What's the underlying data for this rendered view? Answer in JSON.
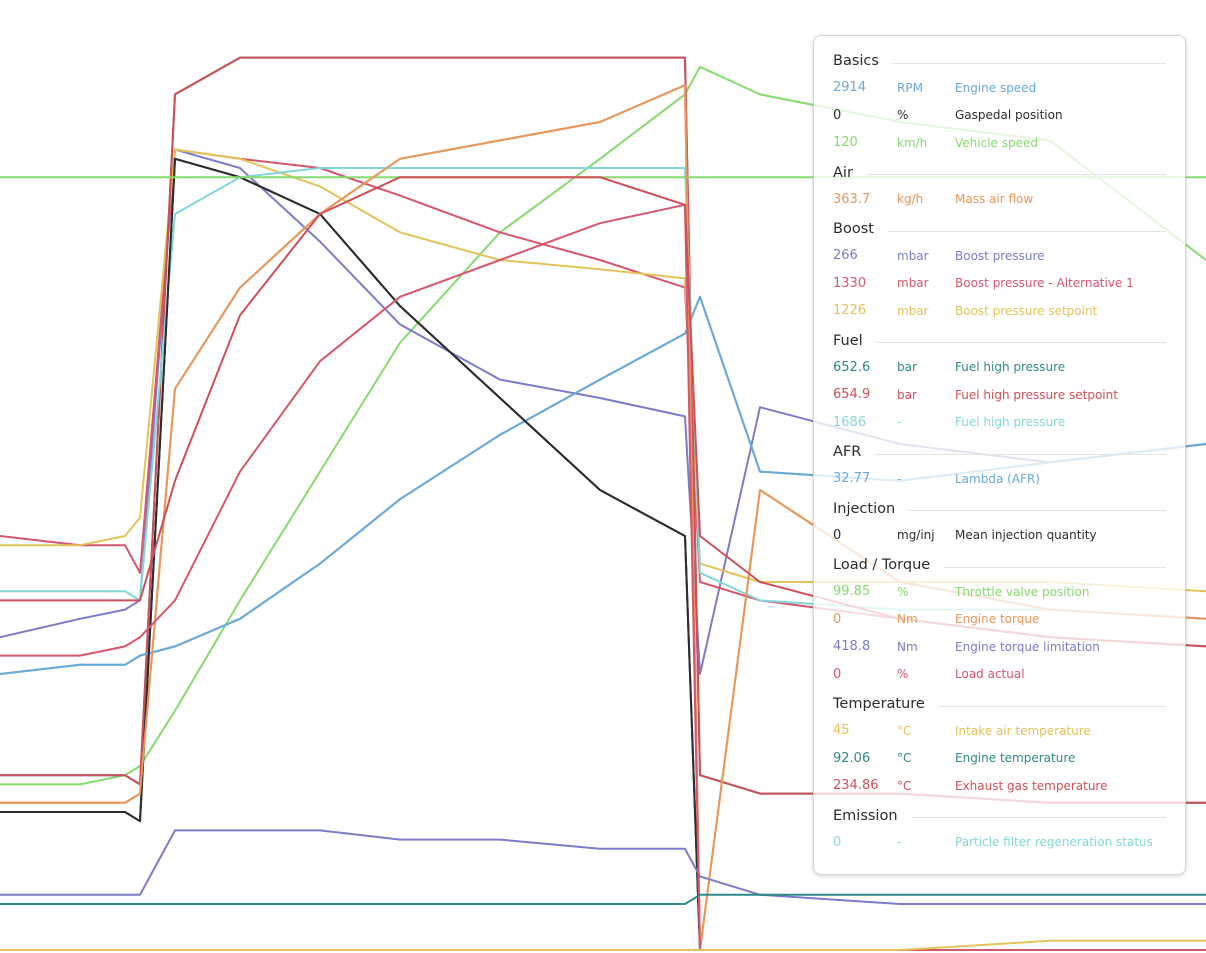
{
  "chart_data": {
    "type": "line",
    "title": "",
    "xlabel": "",
    "ylabel": "",
    "grid": false,
    "legend_placement": "top-right",
    "series": [
      {
        "name": "Engine speed",
        "color": "#6aa9d8",
        "values": [
          0.3,
          0.31,
          0.31,
          0.32,
          0.33,
          0.36,
          0.42,
          0.49,
          0.56,
          0.62,
          0.67,
          0.71,
          0.52,
          0.51,
          0.53,
          0.55
        ]
      },
      {
        "name": "Gaspedal position",
        "color": "#2d2d2d",
        "values": [
          0.15,
          0.15,
          0.15,
          0.14,
          0.86,
          0.84,
          0.8,
          0.7,
          0.6,
          0.5,
          0.45,
          0.0,
          0.0,
          0.0,
          0.0,
          0.0
        ]
      },
      {
        "name": "Vehicle speed",
        "color": "#86db6e",
        "values": [
          0.18,
          0.18,
          0.19,
          0.2,
          0.26,
          0.38,
          0.52,
          0.66,
          0.78,
          0.86,
          0.93,
          0.96,
          0.93,
          0.9,
          0.88,
          0.75
        ]
      },
      {
        "name": "Mass air flow",
        "color": "#e8975a",
        "values": [
          0.16,
          0.16,
          0.16,
          0.17,
          0.61,
          0.72,
          0.8,
          0.86,
          0.88,
          0.9,
          0.94,
          0.0,
          0.5,
          0.4,
          0.37,
          0.36
        ]
      },
      {
        "name": "Boost pressure",
        "color": "#7c7cc8",
        "values": [
          0.34,
          0.36,
          0.37,
          0.38,
          0.87,
          0.85,
          0.77,
          0.68,
          0.62,
          0.6,
          0.58,
          0.3,
          0.59,
          0.55,
          0.53,
          0.55
        ]
      },
      {
        "name": "Boost pressure - Alternative 1",
        "color": "#d6566e",
        "values": [
          0.45,
          0.44,
          0.44,
          0.41,
          0.87,
          0.86,
          0.85,
          0.82,
          0.78,
          0.75,
          0.72,
          0.4,
          0.38,
          0.36,
          0.34,
          0.33
        ]
      },
      {
        "name": "Boost pressure setpoint",
        "color": "#e3c35a",
        "values": [
          0.44,
          0.44,
          0.45,
          0.47,
          0.87,
          0.86,
          0.83,
          0.78,
          0.75,
          0.74,
          0.73,
          0.42,
          0.4,
          0.4,
          0.4,
          0.39
        ]
      },
      {
        "name": "Fuel high pressure",
        "color": "#2e8a86",
        "values": [
          0.19,
          0.19,
          0.19,
          0.18,
          0.93,
          0.97,
          0.97,
          0.97,
          0.97,
          0.97,
          0.97,
          0.19,
          0.17,
          0.17,
          0.16,
          0.16
        ]
      },
      {
        "name": "Fuel high pressure setpoint",
        "color": "#cf4f58",
        "values": [
          0.19,
          0.19,
          0.19,
          0.18,
          0.93,
          0.97,
          0.97,
          0.97,
          0.97,
          0.97,
          0.97,
          0.19,
          0.17,
          0.17,
          0.16,
          0.16
        ]
      },
      {
        "name": "Fuel high pressure",
        "color": "#82d8d8",
        "values": [
          0.39,
          0.39,
          0.39,
          0.38,
          0.8,
          0.84,
          0.85,
          0.85,
          0.85,
          0.85,
          0.85,
          0.41,
          0.38,
          0.37,
          0.37,
          0.36
        ]
      },
      {
        "name": "Lambda (AFR)",
        "color": "#6aa9d8",
        "values": [
          0.3,
          0.31,
          0.31,
          0.32,
          0.33,
          0.36,
          0.42,
          0.49,
          0.56,
          0.62,
          0.67,
          0.71,
          0.52,
          0.51,
          0.53,
          0.55
        ]
      },
      {
        "name": "Mean injection quantity",
        "color": "#2d2d2d",
        "values": [
          0.15,
          0.15,
          0.15,
          0.14,
          0.86,
          0.84,
          0.8,
          0.7,
          0.6,
          0.5,
          0.45,
          0.0,
          0.0,
          0.0,
          0.0,
          0.0
        ]
      },
      {
        "name": "Throttle valve position",
        "color": "#86db6e",
        "values": [
          0.84,
          0.84,
          0.84,
          0.84,
          0.84,
          0.84,
          0.84,
          0.84,
          0.84,
          0.84,
          0.84,
          0.84,
          0.84,
          0.84,
          0.84,
          0.84
        ]
      },
      {
        "name": "Engine torque",
        "color": "#e8975a",
        "values": [
          0.16,
          0.16,
          0.16,
          0.17,
          0.61,
          0.72,
          0.8,
          0.86,
          0.88,
          0.9,
          0.94,
          0.0,
          0.5,
          0.4,
          0.37,
          0.36
        ]
      },
      {
        "name": "Engine torque limitation",
        "color": "#7c7cc8",
        "values": [
          0.06,
          0.06,
          0.06,
          0.06,
          0.13,
          0.13,
          0.13,
          0.12,
          0.12,
          0.11,
          0.11,
          0.08,
          0.06,
          0.05,
          0.05,
          0.05
        ]
      },
      {
        "name": "Load actual",
        "color": "#d6566e",
        "values": [
          0.32,
          0.32,
          0.33,
          0.34,
          0.38,
          0.52,
          0.64,
          0.71,
          0.75,
          0.79,
          0.81,
          0.0,
          0.0,
          0.0,
          0.0,
          0.0
        ]
      },
      {
        "name": "Intake air temperature",
        "color": "#e3c35a",
        "values": [
          0.0,
          0.0,
          0.0,
          0.0,
          0.0,
          0.0,
          0.0,
          0.0,
          0.0,
          0.0,
          0.0,
          0.0,
          0.0,
          0.0,
          0.01,
          0.01
        ]
      },
      {
        "name": "Engine temperature",
        "color": "#2e8a86",
        "values": [
          0.05,
          0.05,
          0.05,
          0.05,
          0.05,
          0.05,
          0.05,
          0.05,
          0.05,
          0.05,
          0.05,
          0.06,
          0.06,
          0.06,
          0.06,
          0.06
        ]
      },
      {
        "name": "Exhaust gas temperature",
        "color": "#cf4f58",
        "values": [
          0.38,
          0.38,
          0.38,
          0.38,
          0.51,
          0.69,
          0.8,
          0.84,
          0.84,
          0.84,
          0.81,
          0.45,
          0.4,
          0.36,
          0.34,
          0.33
        ]
      }
    ]
  },
  "legend": {
    "groups": [
      {
        "title": "Basics",
        "items": [
          {
            "value": "2914",
            "unit": "RPM",
            "name": "Engine speed",
            "color": "#6aa9d8"
          },
          {
            "value": "0",
            "unit": "%",
            "name": "Gaspedal position",
            "color": "#2d2d2d"
          },
          {
            "value": "120",
            "unit": "km/h",
            "name": "Vehicle speed",
            "color": "#86db6e"
          }
        ]
      },
      {
        "title": "Air",
        "items": [
          {
            "value": "363.7",
            "unit": "kg/h",
            "name": "Mass air flow",
            "color": "#e8975a"
          }
        ]
      },
      {
        "title": "Boost",
        "items": [
          {
            "value": "266",
            "unit": "mbar",
            "name": "Boost pressure",
            "color": "#7c7cc8"
          },
          {
            "value": "1330",
            "unit": "mbar",
            "name": "Boost pressure - Alternative 1",
            "color": "#d6566e"
          },
          {
            "value": "1226",
            "unit": "mbar",
            "name": "Boost pressure setpoint",
            "color": "#e3c35a"
          }
        ]
      },
      {
        "title": "Fuel",
        "items": [
          {
            "value": "652.6",
            "unit": "bar",
            "name": "Fuel high pressure",
            "color": "#2e8a86"
          },
          {
            "value": "654.9",
            "unit": "bar",
            "name": "Fuel high pressure setpoint",
            "color": "#cf4f58"
          },
          {
            "value": "1686",
            "unit": "-",
            "name": "Fuel high pressure",
            "color": "#82d8d8"
          }
        ]
      },
      {
        "title": "AFR",
        "items": [
          {
            "value": "32.77",
            "unit": "-",
            "name": "Lambda (AFR)",
            "color": "#6aa9d8"
          }
        ]
      },
      {
        "title": "Injection",
        "items": [
          {
            "value": "0",
            "unit": "mg/inj",
            "name": "Mean injection quantity",
            "color": "#2d2d2d"
          }
        ]
      },
      {
        "title": "Load / Torque",
        "items": [
          {
            "value": "99.85",
            "unit": "%",
            "name": "Throttle valve position",
            "color": "#86db6e"
          },
          {
            "value": "0",
            "unit": "Nm",
            "name": "Engine torque",
            "color": "#e8975a"
          },
          {
            "value": "418.8",
            "unit": "Nm",
            "name": "Engine torque limitation",
            "color": "#7c7cc8"
          },
          {
            "value": "0",
            "unit": "%",
            "name": "Load actual",
            "color": "#d6566e"
          }
        ]
      },
      {
        "title": "Temperature",
        "items": [
          {
            "value": "45",
            "unit": "°C",
            "name": "Intake air temperature",
            "color": "#e3c35a"
          },
          {
            "value": "92.06",
            "unit": "°C",
            "name": "Engine temperature",
            "color": "#2e8a86"
          },
          {
            "value": "234.86",
            "unit": "°C",
            "name": "Exhaust gas temperature",
            "color": "#cf4f58"
          }
        ]
      },
      {
        "title": "Emission",
        "items": [
          {
            "value": "0",
            "unit": "-",
            "name": "Particle filter regeneration status",
            "color": "#82d8d8"
          }
        ]
      }
    ]
  }
}
